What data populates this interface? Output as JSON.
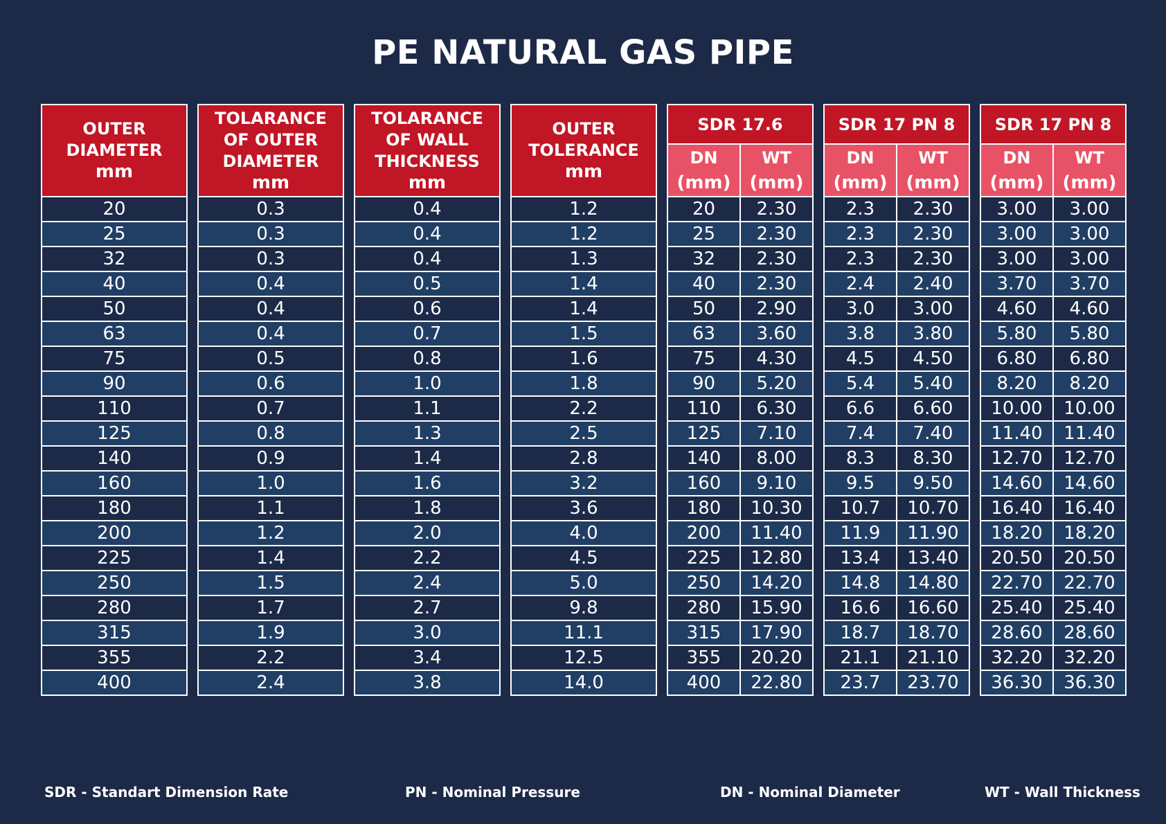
{
  "title": "PE NATURAL GAS PIPE",
  "single_tables": [
    {
      "header_lines": [
        "OUTER",
        "DIAMETER",
        "mm"
      ],
      "values": [
        "20",
        "25",
        "32",
        "40",
        "50",
        "63",
        "75",
        "90",
        "110",
        "125",
        "140",
        "160",
        "180",
        "200",
        "225",
        "250",
        "280",
        "315",
        "355",
        "400"
      ]
    },
    {
      "header_lines": [
        "TOLARANCE",
        "OF OUTER",
        "DIAMETER",
        "mm"
      ],
      "values": [
        "0.3",
        "0.3",
        "0.3",
        "0.4",
        "0.4",
        "0.4",
        "0.5",
        "0.6",
        "0.7",
        "0.8",
        "0.9",
        "1.0",
        "1.1",
        "1.2",
        "1.4",
        "1.5",
        "1.7",
        "1.9",
        "2.2",
        "2.4"
      ]
    },
    {
      "header_lines": [
        "TOLARANCE",
        "OF WALL",
        "THICKNESS",
        "mm"
      ],
      "values": [
        "0.4",
        "0.4",
        "0.4",
        "0.5",
        "0.6",
        "0.7",
        "0.8",
        "1.0",
        "1.1",
        "1.3",
        "1.4",
        "1.6",
        "1.8",
        "2.0",
        "2.2",
        "2.4",
        "2.7",
        "3.0",
        "3.4",
        "3.8"
      ]
    },
    {
      "header_lines": [
        "OUTER",
        "TOLERANCE",
        "mm"
      ],
      "values": [
        "1.2",
        "1.2",
        "1.3",
        "1.4",
        "1.4",
        "1.5",
        "1.6",
        "1.8",
        "2.2",
        "2.5",
        "2.8",
        "3.2",
        "3.6",
        "4.0",
        "4.5",
        "5.0",
        "9.8",
        "11.1",
        "12.5",
        "14.0"
      ]
    }
  ],
  "sdr_tables": [
    {
      "title": "SDR 17.6",
      "dn_label": [
        "DN",
        "(mm)"
      ],
      "wt_label": [
        "WT",
        "(mm)"
      ],
      "rows": [
        [
          "20",
          "2.30"
        ],
        [
          "25",
          "2.30"
        ],
        [
          "32",
          "2.30"
        ],
        [
          "40",
          "2.30"
        ],
        [
          "50",
          "2.90"
        ],
        [
          "63",
          "3.60"
        ],
        [
          "75",
          "4.30"
        ],
        [
          "90",
          "5.20"
        ],
        [
          "110",
          "6.30"
        ],
        [
          "125",
          "7.10"
        ],
        [
          "140",
          "8.00"
        ],
        [
          "160",
          "9.10"
        ],
        [
          "180",
          "10.30"
        ],
        [
          "200",
          "11.40"
        ],
        [
          "225",
          "12.80"
        ],
        [
          "250",
          "14.20"
        ],
        [
          "280",
          "15.90"
        ],
        [
          "315",
          "17.90"
        ],
        [
          "355",
          "20.20"
        ],
        [
          "400",
          "22.80"
        ]
      ]
    },
    {
      "title": "SDR 17 PN 8",
      "dn_label": [
        "DN",
        "(mm)"
      ],
      "wt_label": [
        "WT",
        "(mm)"
      ],
      "rows": [
        [
          "2.3",
          "2.30"
        ],
        [
          "2.3",
          "2.30"
        ],
        [
          "2.3",
          "2.30"
        ],
        [
          "2.4",
          "2.40"
        ],
        [
          "3.0",
          "3.00"
        ],
        [
          "3.8",
          "3.80"
        ],
        [
          "4.5",
          "4.50"
        ],
        [
          "5.4",
          "5.40"
        ],
        [
          "6.6",
          "6.60"
        ],
        [
          "7.4",
          "7.40"
        ],
        [
          "8.3",
          "8.30"
        ],
        [
          "9.5",
          "9.50"
        ],
        [
          "10.7",
          "10.70"
        ],
        [
          "11.9",
          "11.90"
        ],
        [
          "13.4",
          "13.40"
        ],
        [
          "14.8",
          "14.80"
        ],
        [
          "16.6",
          "16.60"
        ],
        [
          "18.7",
          "18.70"
        ],
        [
          "21.1",
          "21.10"
        ],
        [
          "23.7",
          "23.70"
        ]
      ]
    },
    {
      "title": "SDR 17 PN 8",
      "dn_label": [
        "DN",
        "(mm)"
      ],
      "wt_label": [
        "WT",
        "(mm)"
      ],
      "rows": [
        [
          "3.00",
          "3.00"
        ],
        [
          "3.00",
          "3.00"
        ],
        [
          "3.00",
          "3.00"
        ],
        [
          "3.70",
          "3.70"
        ],
        [
          "4.60",
          "4.60"
        ],
        [
          "5.80",
          "5.80"
        ],
        [
          "6.80",
          "6.80"
        ],
        [
          "8.20",
          "8.20"
        ],
        [
          "10.00",
          "10.00"
        ],
        [
          "11.40",
          "11.40"
        ],
        [
          "12.70",
          "12.70"
        ],
        [
          "14.60",
          "14.60"
        ],
        [
          "16.40",
          "16.40"
        ],
        [
          "18.20",
          "18.20"
        ],
        [
          "20.50",
          "20.50"
        ],
        [
          "22.70",
          "22.70"
        ],
        [
          "25.40",
          "25.40"
        ],
        [
          "28.60",
          "28.60"
        ],
        [
          "32.20",
          "32.20"
        ],
        [
          "36.30",
          "36.30"
        ]
      ]
    }
  ],
  "footer": [
    "SDR - Standart Dimension Rate",
    "PN - Nominal Pressure",
    "DN - Nominal Diameter",
    "WT - Wall Thickness"
  ],
  "colors": {
    "background": "#1c2a48",
    "header_red": "#c01625",
    "subheader_pink": "#e85266",
    "row_dark": "#1c2a48",
    "row_light": "#213f65"
  }
}
